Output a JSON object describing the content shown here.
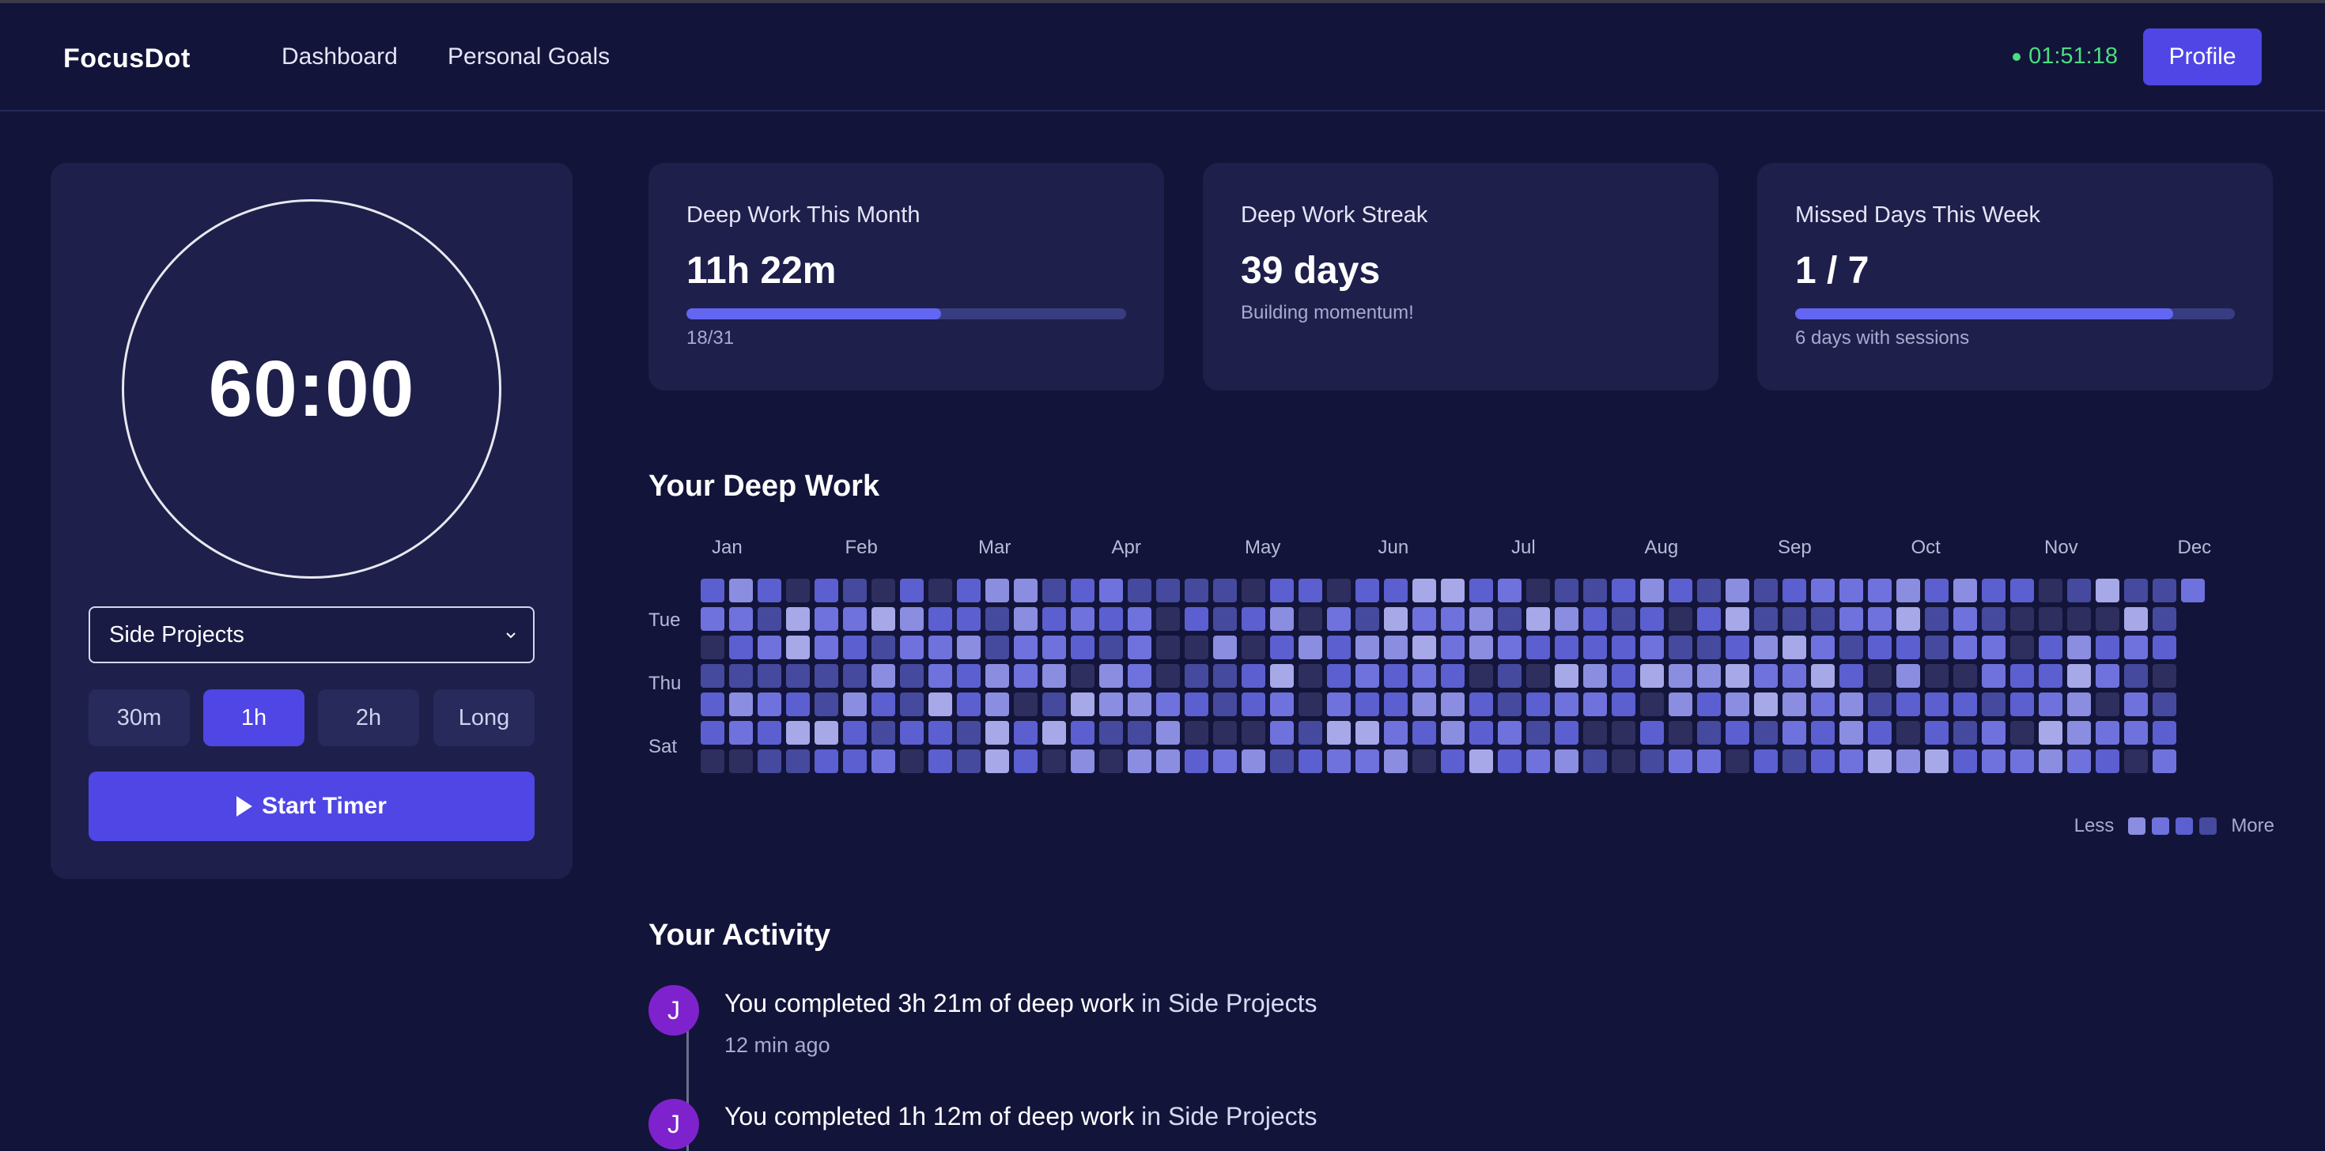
{
  "nav": {
    "logo": "FocusDot",
    "links": [
      "Dashboard",
      "Personal Goals"
    ],
    "timer_status": "01:51:18",
    "profile_label": "Profile"
  },
  "timer": {
    "time": "60:00",
    "project": "Side Projects",
    "durations": [
      "30m",
      "1h",
      "2h",
      "Long"
    ],
    "active_duration": "1h",
    "start_label": "Start Timer"
  },
  "stats": [
    {
      "title": "Deep Work This Month",
      "value": "11h 22m",
      "progress": 0.58,
      "sub": "18/31"
    },
    {
      "title": "Deep Work Streak",
      "value": "39 days",
      "sub": "Building momentum!"
    },
    {
      "title": "Missed Days This Week",
      "value": "1 / 7",
      "progress": 0.86,
      "sub": "6 days with sessions"
    }
  ],
  "heatmap": {
    "title": "Your Deep Work",
    "months": [
      "Jan",
      "Feb",
      "Mar",
      "Apr",
      "May",
      "Jun",
      "Jul",
      "Aug",
      "Sep",
      "Oct",
      "Nov",
      "Dec"
    ],
    "days": [
      "Tue",
      "Thu",
      "Sat"
    ],
    "legend_less": "Less",
    "legend_more": "More",
    "colors": [
      "#2e2f5e",
      "#454a9e",
      "#5b5fcf",
      "#6f72dc",
      "#8a8de0",
      "#a6a8e8"
    ]
  },
  "activity": {
    "title": "Your Activity",
    "items": [
      {
        "avatar": "J",
        "text": "You completed 3h 21m of deep work",
        "in_word": "in",
        "project": "Side Projects",
        "time": "12 min ago"
      },
      {
        "avatar": "J",
        "text": "You completed 1h 12m of deep work",
        "in_word": "in",
        "project": "Side Projects",
        "time": ""
      }
    ]
  }
}
